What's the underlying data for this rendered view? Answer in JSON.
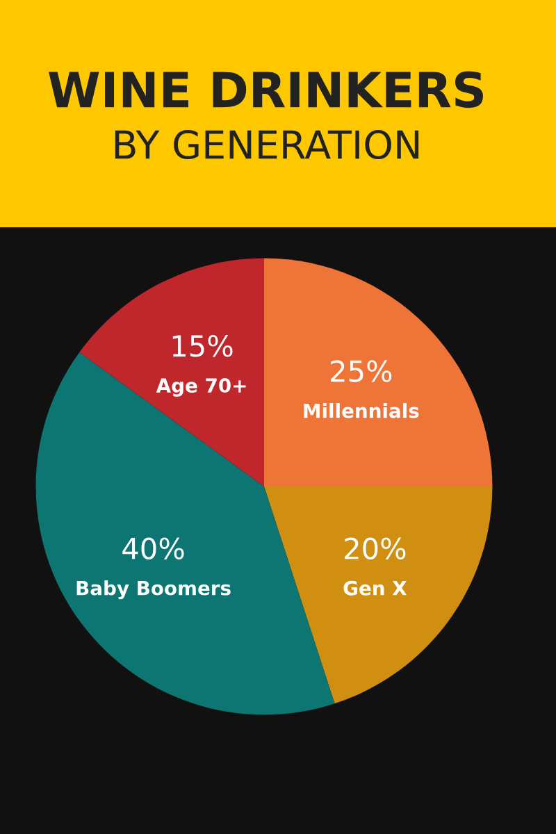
{
  "chart_data": {
    "type": "pie",
    "title": "WINE DRINKERS",
    "subtitle": "BY GENERATION",
    "categories": [
      "Millennials",
      "Gen X",
      "Baby Boomers",
      "Age 70+"
    ],
    "values": [
      25,
      20,
      40,
      15
    ],
    "value_labels": [
      "25%",
      "20%",
      "40%",
      "15%"
    ],
    "colors": [
      "#ef7437",
      "#d18f12",
      "#0e7672",
      "#c0272d"
    ],
    "legend": false
  }
}
